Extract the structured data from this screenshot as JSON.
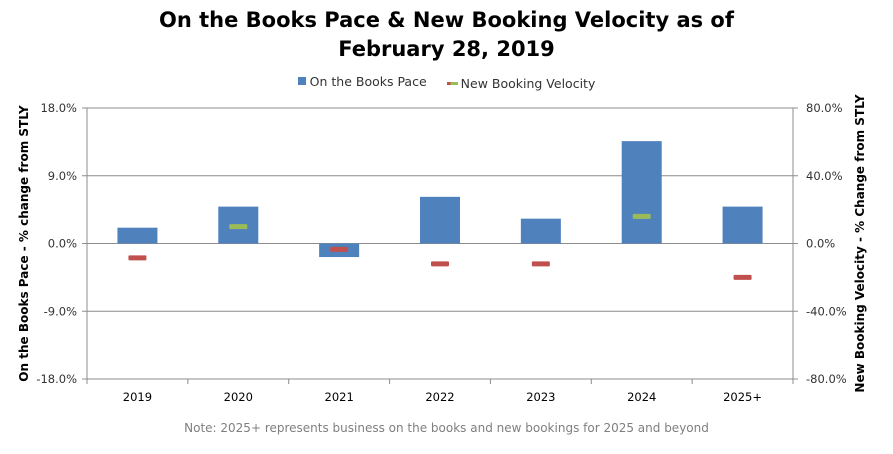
{
  "chart_data": {
    "type": "bar",
    "title_line1": "On the Books Pace & New Booking Velocity as of",
    "title_line2": "February 28, 2019",
    "categories": [
      "2019",
      "2020",
      "2021",
      "2022",
      "2023",
      "2024",
      "2025+"
    ],
    "series": [
      {
        "name": "On the Books Pace",
        "type": "bar",
        "axis": "left",
        "color": "#4f81bd",
        "values": [
          2.1,
          4.9,
          -1.8,
          6.2,
          3.3,
          13.6,
          4.9
        ]
      },
      {
        "name": "New Booking Velocity",
        "type": "marker",
        "axis": "right",
        "values": [
          -8.5,
          10.0,
          -3.5,
          -12.0,
          -12.0,
          16.0,
          -20.0
        ],
        "colors": [
          "#c0504d",
          "#9bbb59",
          "#c0504d",
          "#c0504d",
          "#c0504d",
          "#9bbb59",
          "#c0504d"
        ]
      }
    ],
    "y_left": {
      "label": "On the Books Pace - % change from STLY",
      "lim": [
        -18,
        18
      ],
      "ticks": [
        -18,
        -9,
        0,
        9,
        18
      ],
      "tick_labels": [
        "-18.0%",
        "-9.0%",
        "0.0%",
        "9.0%",
        "18.0%"
      ]
    },
    "y_right": {
      "label": "New Booking Velocity - % Change from STLY",
      "lim": [
        -80,
        80
      ],
      "ticks": [
        -80,
        -40,
        0,
        40,
        80
      ],
      "tick_labels": [
        "-80.0%",
        "-40.0%",
        "0.0%",
        "40.0%",
        "80.0%"
      ]
    },
    "grid": true,
    "legend_position": "top-center",
    "legend": {
      "bar_label": "On the Books Pace",
      "bar_color": "#4f81bd",
      "line_label": "New Booking Velocity",
      "line_color": "#9bbb59",
      "line_color_2": "#c0504d"
    },
    "note": "Note: 2025+ represents business on the books and new bookings for 2025 and beyond"
  }
}
